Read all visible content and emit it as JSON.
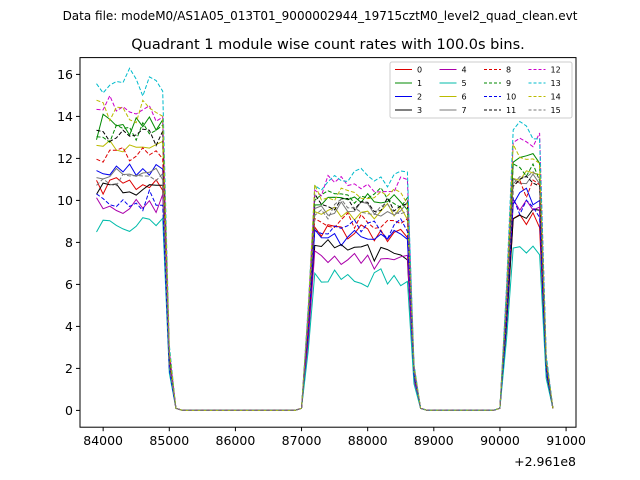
{
  "chart_data": {
    "type": "line",
    "suptitle": "Data file: modeM0/AS1A05_013T01_9000002944_19715cztM0_level2_quad_clean.evt",
    "title": "Quadrant 1 module wise count rates with 100.0s bins.",
    "xlabel": "",
    "ylabel": "",
    "x_offset_label": "+2.961e8",
    "xlim": [
      83650,
      91150
    ],
    "ylim": [
      -0.8,
      16.8
    ],
    "x_ticks": [
      84000,
      85000,
      86000,
      87000,
      88000,
      89000,
      90000,
      91000
    ],
    "x_tick_labels": [
      "84000",
      "85000",
      "86000",
      "87000",
      "88000",
      "89000",
      "90000",
      "91000"
    ],
    "y_ticks": [
      0,
      2,
      4,
      6,
      8,
      10,
      12,
      14,
      16
    ],
    "y_tick_labels": [
      "0",
      "2",
      "4",
      "6",
      "8",
      "10",
      "12",
      "14",
      "16"
    ],
    "grid": false,
    "legend_position": "top-right",
    "segments": [
      {
        "start": 83900,
        "end": 85100
      },
      {
        "start": 87000,
        "end": 88800
      },
      {
        "start": 90000,
        "end": 90800
      }
    ],
    "series": [
      {
        "name": "0",
        "color": "#dd0000",
        "dash": "solid",
        "levels": [
          10.8,
          8.5,
          9.0
        ]
      },
      {
        "name": "1",
        "color": "#008800",
        "dash": "solid",
        "levels": [
          13.6,
          10.0,
          12.2
        ]
      },
      {
        "name": "2",
        "color": "#0000ee",
        "dash": "solid",
        "levels": [
          11.5,
          8.3,
          10.0
        ]
      },
      {
        "name": "3",
        "color": "#000000",
        "dash": "solid",
        "levels": [
          10.5,
          7.6,
          9.2
        ]
      },
      {
        "name": "4",
        "color": "#aa00aa",
        "dash": "solid",
        "levels": [
          9.8,
          7.2,
          9.8
        ]
      },
      {
        "name": "5",
        "color": "#00bbaa",
        "dash": "solid",
        "levels": [
          8.9,
          6.3,
          7.6
        ]
      },
      {
        "name": "6",
        "color": "#bbbb00",
        "dash": "solid",
        "levels": [
          12.5,
          9.4,
          11.3
        ]
      },
      {
        "name": "7",
        "color": "#777777",
        "dash": "solid",
        "levels": [
          11.1,
          9.6,
          10.9
        ]
      },
      {
        "name": "8",
        "color": "#dd0000",
        "dash": "dashed",
        "levels": [
          12.1,
          8.9,
          10.5
        ]
      },
      {
        "name": "9",
        "color": "#008800",
        "dash": "dashed",
        "levels": [
          13.3,
          10.1,
          11.6
        ]
      },
      {
        "name": "10",
        "color": "#0000ee",
        "dash": "dashed",
        "levels": [
          10.0,
          8.6,
          9.6
        ]
      },
      {
        "name": "11",
        "color": "#000000",
        "dash": "dashed",
        "levels": [
          13.1,
          9.8,
          11.0
        ]
      },
      {
        "name": "12",
        "color": "#cc00cc",
        "dash": "dashed",
        "levels": [
          14.3,
          10.7,
          12.8
        ]
      },
      {
        "name": "13",
        "color": "#00bbcc",
        "dash": "dashed",
        "levels": [
          15.6,
          11.0,
          13.3
        ]
      },
      {
        "name": "14",
        "color": "#bbbb00",
        "dash": "dashed",
        "levels": [
          14.2,
          10.3,
          12.0
        ]
      },
      {
        "name": "15",
        "color": "#777777",
        "dash": "dashed",
        "levels": [
          11.0,
          9.6,
          11.4
        ]
      }
    ]
  }
}
